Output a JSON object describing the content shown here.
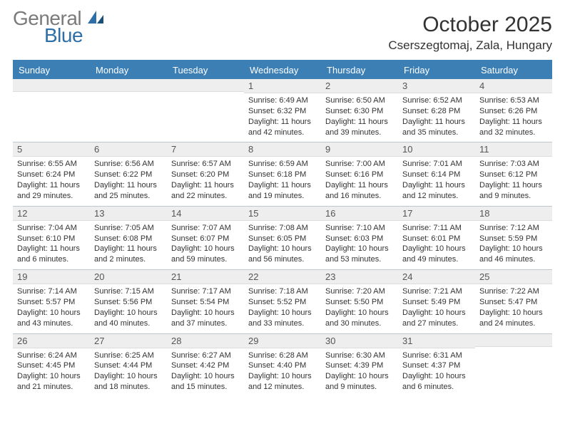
{
  "logo": {
    "general": "General",
    "blue": "Blue"
  },
  "title": "October 2025",
  "location": "Cserszegtomaj, Zala, Hungary",
  "style": {
    "header_bg": "#3b7fb5",
    "header_fg": "#ffffff",
    "daynum_bg": "#eeeeee",
    "row_divider": "#bfc8cf",
    "page_bg": "#ffffff",
    "text": "#333333",
    "logo_gray": "#7a7a7a",
    "logo_blue": "#2f6fa8",
    "title_fontsize": 30,
    "location_fontsize": 17,
    "weekday_fontsize": 13,
    "daynum_fontsize": 13,
    "body_fontsize": 11
  },
  "weekdays": [
    "Sunday",
    "Monday",
    "Tuesday",
    "Wednesday",
    "Thursday",
    "Friday",
    "Saturday"
  ],
  "weeks": [
    [
      {
        "n": "",
        "sunrise": "",
        "sunset": "",
        "daylight": ""
      },
      {
        "n": "",
        "sunrise": "",
        "sunset": "",
        "daylight": ""
      },
      {
        "n": "",
        "sunrise": "",
        "sunset": "",
        "daylight": ""
      },
      {
        "n": "1",
        "sunrise": "Sunrise: 6:49 AM",
        "sunset": "Sunset: 6:32 PM",
        "daylight": "Daylight: 11 hours and 42 minutes."
      },
      {
        "n": "2",
        "sunrise": "Sunrise: 6:50 AM",
        "sunset": "Sunset: 6:30 PM",
        "daylight": "Daylight: 11 hours and 39 minutes."
      },
      {
        "n": "3",
        "sunrise": "Sunrise: 6:52 AM",
        "sunset": "Sunset: 6:28 PM",
        "daylight": "Daylight: 11 hours and 35 minutes."
      },
      {
        "n": "4",
        "sunrise": "Sunrise: 6:53 AM",
        "sunset": "Sunset: 6:26 PM",
        "daylight": "Daylight: 11 hours and 32 minutes."
      }
    ],
    [
      {
        "n": "5",
        "sunrise": "Sunrise: 6:55 AM",
        "sunset": "Sunset: 6:24 PM",
        "daylight": "Daylight: 11 hours and 29 minutes."
      },
      {
        "n": "6",
        "sunrise": "Sunrise: 6:56 AM",
        "sunset": "Sunset: 6:22 PM",
        "daylight": "Daylight: 11 hours and 25 minutes."
      },
      {
        "n": "7",
        "sunrise": "Sunrise: 6:57 AM",
        "sunset": "Sunset: 6:20 PM",
        "daylight": "Daylight: 11 hours and 22 minutes."
      },
      {
        "n": "8",
        "sunrise": "Sunrise: 6:59 AM",
        "sunset": "Sunset: 6:18 PM",
        "daylight": "Daylight: 11 hours and 19 minutes."
      },
      {
        "n": "9",
        "sunrise": "Sunrise: 7:00 AM",
        "sunset": "Sunset: 6:16 PM",
        "daylight": "Daylight: 11 hours and 16 minutes."
      },
      {
        "n": "10",
        "sunrise": "Sunrise: 7:01 AM",
        "sunset": "Sunset: 6:14 PM",
        "daylight": "Daylight: 11 hours and 12 minutes."
      },
      {
        "n": "11",
        "sunrise": "Sunrise: 7:03 AM",
        "sunset": "Sunset: 6:12 PM",
        "daylight": "Daylight: 11 hours and 9 minutes."
      }
    ],
    [
      {
        "n": "12",
        "sunrise": "Sunrise: 7:04 AM",
        "sunset": "Sunset: 6:10 PM",
        "daylight": "Daylight: 11 hours and 6 minutes."
      },
      {
        "n": "13",
        "sunrise": "Sunrise: 7:05 AM",
        "sunset": "Sunset: 6:08 PM",
        "daylight": "Daylight: 11 hours and 2 minutes."
      },
      {
        "n": "14",
        "sunrise": "Sunrise: 7:07 AM",
        "sunset": "Sunset: 6:07 PM",
        "daylight": "Daylight: 10 hours and 59 minutes."
      },
      {
        "n": "15",
        "sunrise": "Sunrise: 7:08 AM",
        "sunset": "Sunset: 6:05 PM",
        "daylight": "Daylight: 10 hours and 56 minutes."
      },
      {
        "n": "16",
        "sunrise": "Sunrise: 7:10 AM",
        "sunset": "Sunset: 6:03 PM",
        "daylight": "Daylight: 10 hours and 53 minutes."
      },
      {
        "n": "17",
        "sunrise": "Sunrise: 7:11 AM",
        "sunset": "Sunset: 6:01 PM",
        "daylight": "Daylight: 10 hours and 49 minutes."
      },
      {
        "n": "18",
        "sunrise": "Sunrise: 7:12 AM",
        "sunset": "Sunset: 5:59 PM",
        "daylight": "Daylight: 10 hours and 46 minutes."
      }
    ],
    [
      {
        "n": "19",
        "sunrise": "Sunrise: 7:14 AM",
        "sunset": "Sunset: 5:57 PM",
        "daylight": "Daylight: 10 hours and 43 minutes."
      },
      {
        "n": "20",
        "sunrise": "Sunrise: 7:15 AM",
        "sunset": "Sunset: 5:56 PM",
        "daylight": "Daylight: 10 hours and 40 minutes."
      },
      {
        "n": "21",
        "sunrise": "Sunrise: 7:17 AM",
        "sunset": "Sunset: 5:54 PM",
        "daylight": "Daylight: 10 hours and 37 minutes."
      },
      {
        "n": "22",
        "sunrise": "Sunrise: 7:18 AM",
        "sunset": "Sunset: 5:52 PM",
        "daylight": "Daylight: 10 hours and 33 minutes."
      },
      {
        "n": "23",
        "sunrise": "Sunrise: 7:20 AM",
        "sunset": "Sunset: 5:50 PM",
        "daylight": "Daylight: 10 hours and 30 minutes."
      },
      {
        "n": "24",
        "sunrise": "Sunrise: 7:21 AM",
        "sunset": "Sunset: 5:49 PM",
        "daylight": "Daylight: 10 hours and 27 minutes."
      },
      {
        "n": "25",
        "sunrise": "Sunrise: 7:22 AM",
        "sunset": "Sunset: 5:47 PM",
        "daylight": "Daylight: 10 hours and 24 minutes."
      }
    ],
    [
      {
        "n": "26",
        "sunrise": "Sunrise: 6:24 AM",
        "sunset": "Sunset: 4:45 PM",
        "daylight": "Daylight: 10 hours and 21 minutes."
      },
      {
        "n": "27",
        "sunrise": "Sunrise: 6:25 AM",
        "sunset": "Sunset: 4:44 PM",
        "daylight": "Daylight: 10 hours and 18 minutes."
      },
      {
        "n": "28",
        "sunrise": "Sunrise: 6:27 AM",
        "sunset": "Sunset: 4:42 PM",
        "daylight": "Daylight: 10 hours and 15 minutes."
      },
      {
        "n": "29",
        "sunrise": "Sunrise: 6:28 AM",
        "sunset": "Sunset: 4:40 PM",
        "daylight": "Daylight: 10 hours and 12 minutes."
      },
      {
        "n": "30",
        "sunrise": "Sunrise: 6:30 AM",
        "sunset": "Sunset: 4:39 PM",
        "daylight": "Daylight: 10 hours and 9 minutes."
      },
      {
        "n": "31",
        "sunrise": "Sunrise: 6:31 AM",
        "sunset": "Sunset: 4:37 PM",
        "daylight": "Daylight: 10 hours and 6 minutes."
      },
      {
        "n": "",
        "sunrise": "",
        "sunset": "",
        "daylight": ""
      }
    ]
  ]
}
